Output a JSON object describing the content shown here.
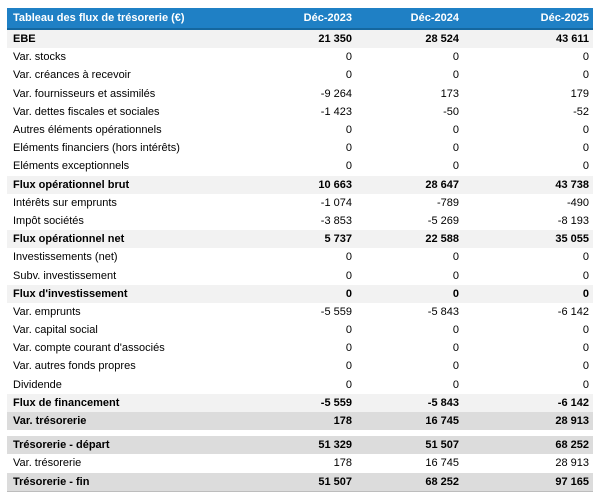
{
  "table": {
    "title": "Tableau des flux de trésorerie (€)",
    "columns": [
      "Déc-2023",
      "Déc-2024",
      "Déc-2025"
    ],
    "colors": {
      "header_bg": "#1f80c5",
      "header_border": "#15679f",
      "subtotal_bg": "#f2f2f2",
      "total_bg": "#dcdcdc",
      "text": "#000000"
    },
    "rows": [
      {
        "label": "EBE",
        "values": [
          "21 350",
          "28 524",
          "43 611"
        ],
        "style": "subtotal"
      },
      {
        "label": "Var. stocks",
        "values": [
          "0",
          "0",
          "0"
        ],
        "style": "normal"
      },
      {
        "label": "Var. créances à recevoir",
        "values": [
          "0",
          "0",
          "0"
        ],
        "style": "normal"
      },
      {
        "label": "Var. fournisseurs et assimilés",
        "values": [
          "-9 264",
          "173",
          "179"
        ],
        "style": "normal"
      },
      {
        "label": "Var. dettes fiscales et sociales",
        "values": [
          "-1 423",
          "-50",
          "-52"
        ],
        "style": "normal"
      },
      {
        "label": "Autres éléments opérationnels",
        "values": [
          "0",
          "0",
          "0"
        ],
        "style": "normal"
      },
      {
        "label": "Eléments financiers (hors intérêts)",
        "values": [
          "0",
          "0",
          "0"
        ],
        "style": "normal"
      },
      {
        "label": "Eléments exceptionnels",
        "values": [
          "0",
          "0",
          "0"
        ],
        "style": "normal"
      },
      {
        "label": "Flux opérationnel brut",
        "values": [
          "10 663",
          "28 647",
          "43 738"
        ],
        "style": "subtotal"
      },
      {
        "label": "Intérêts sur emprunts",
        "values": [
          "-1 074",
          "-789",
          "-490"
        ],
        "style": "normal"
      },
      {
        "label": "Impôt sociétés",
        "values": [
          "-3 853",
          "-5 269",
          "-8 193"
        ],
        "style": "normal"
      },
      {
        "label": "Flux opérationnel net",
        "values": [
          "5 737",
          "22 588",
          "35 055"
        ],
        "style": "subtotal"
      },
      {
        "label": "Investissements (net)",
        "values": [
          "0",
          "0",
          "0"
        ],
        "style": "normal"
      },
      {
        "label": "Subv. investissement",
        "values": [
          "0",
          "0",
          "0"
        ],
        "style": "normal"
      },
      {
        "label": "Flux d'investissement",
        "values": [
          "0",
          "0",
          "0"
        ],
        "style": "subtotal"
      },
      {
        "label": "Var. emprunts",
        "values": [
          "-5 559",
          "-5 843",
          "-6 142"
        ],
        "style": "normal"
      },
      {
        "label": "Var. capital social",
        "values": [
          "0",
          "0",
          "0"
        ],
        "style": "normal"
      },
      {
        "label": "Var. compte courant d'associés",
        "values": [
          "0",
          "0",
          "0"
        ],
        "style": "normal"
      },
      {
        "label": "Var. autres fonds propres",
        "values": [
          "0",
          "0",
          "0"
        ],
        "style": "normal"
      },
      {
        "label": "Dividende",
        "values": [
          "0",
          "0",
          "0"
        ],
        "style": "normal"
      },
      {
        "label": "Flux de financement",
        "values": [
          "-5 559",
          "-5 843",
          "-6 142"
        ],
        "style": "subtotal"
      },
      {
        "label": "Var. trésorerie",
        "values": [
          "178",
          "16 745",
          "28 913"
        ],
        "style": "total"
      },
      {
        "label": "",
        "values": [
          "",
          "",
          ""
        ],
        "style": "spacer"
      },
      {
        "label": "Trésorerie - départ",
        "values": [
          "51 329",
          "51 507",
          "68 252"
        ],
        "style": "total"
      },
      {
        "label": "Var. trésorerie",
        "values": [
          "178",
          "16 745",
          "28 913"
        ],
        "style": "normal"
      },
      {
        "label": "Trésorerie - fin",
        "values": [
          "51 507",
          "68 252",
          "97 165"
        ],
        "style": "total"
      }
    ]
  }
}
